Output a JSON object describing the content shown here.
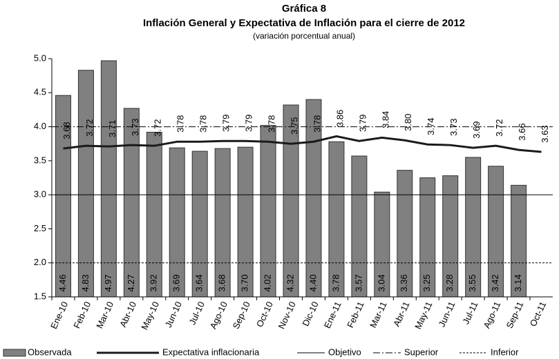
{
  "chart_data": {
    "type": "bar_line",
    "title": "Gráfica 8",
    "subtitle": "Inflación General y Expectativa de Inflación para el cierre de 2012",
    "note": "(variación porcentual anual)",
    "categories": [
      "Ene-10",
      "Feb-10",
      "Mar-10",
      "Abr-10",
      "May-10",
      "Jun-10",
      "Jul-10",
      "Ago-10",
      "Sep-10",
      "Oct-10",
      "Nov-10",
      "Dic-10",
      "Ene-11",
      "Feb-11",
      "Mar-11",
      "Abr-11",
      "May-11",
      "Jun-11",
      "Jul-11",
      "Ago-11",
      "Sep-11",
      "Oct-11"
    ],
    "series": [
      {
        "name": "Observada",
        "kind": "bar",
        "color": "#808080",
        "values": [
          4.46,
          4.83,
          4.97,
          4.27,
          3.92,
          3.69,
          3.64,
          3.68,
          3.7,
          4.02,
          4.32,
          4.4,
          3.78,
          3.57,
          3.04,
          3.36,
          3.25,
          3.28,
          3.55,
          3.42,
          3.14,
          null
        ],
        "value_labels": [
          "4.46",
          "4.83",
          "4.97",
          "4.27",
          "3.92",
          "3.69",
          "3.64",
          "3.68",
          "3.70",
          "4.02",
          "4.32",
          "4.40",
          "3.78",
          "3.57",
          "3.04",
          "3.36",
          "3.25",
          "3.28",
          "3.55",
          "3.42",
          "3.14",
          null
        ]
      },
      {
        "name": "Expectativa inflacionaria",
        "kind": "line",
        "color": "#1a1a1a",
        "values": [
          3.68,
          3.72,
          3.71,
          3.73,
          3.72,
          3.78,
          3.78,
          3.79,
          3.79,
          3.78,
          3.75,
          3.78,
          3.86,
          3.79,
          3.84,
          3.8,
          3.74,
          3.73,
          3.69,
          3.72,
          3.66,
          3.63
        ],
        "value_labels": [
          "3.68",
          "3.72",
          "3.71",
          "3.73",
          "3.72",
          "3.78",
          "3.78",
          "3.79",
          "3.79",
          "3.78",
          "3.75",
          "3.78",
          "3.86",
          "3.79",
          "3.84",
          "3.80",
          "3.74",
          "3.73",
          "3.69",
          "3.72",
          "3.66",
          "3.63"
        ]
      }
    ],
    "reference_lines": [
      {
        "name": "Objetivo",
        "value": 3,
        "dash": "none"
      },
      {
        "name": "Superior",
        "value": 4,
        "dash": "10 3 2 3"
      },
      {
        "name": "Inferior",
        "value": 2,
        "dash": "3 2"
      }
    ],
    "ylim": [
      1.5,
      5
    ],
    "yticks": [
      {
        "value": 1.5,
        "label": "1.5"
      },
      {
        "value": 2,
        "label": "2.0"
      },
      {
        "value": 2.5,
        "label": "2.5"
      },
      {
        "value": 3,
        "label": "3.0"
      },
      {
        "value": 3.5,
        "label": "3.5"
      },
      {
        "value": 4,
        "label": "4.0"
      },
      {
        "value": 4.5,
        "label": "4.5"
      },
      {
        "value": 5,
        "label": "5.0"
      }
    ]
  }
}
